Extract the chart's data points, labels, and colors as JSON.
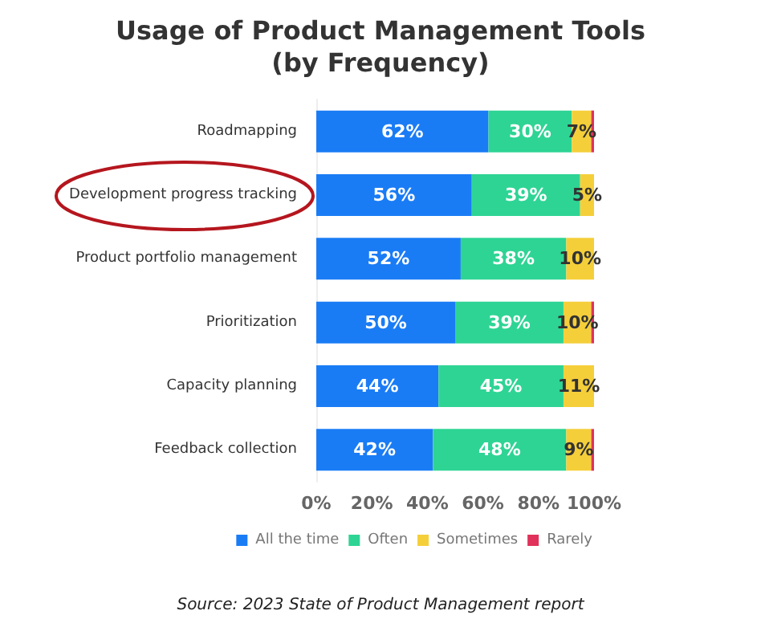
{
  "chart_data": {
    "type": "bar",
    "title": "Usage of Product Management Tools\n(by Frequency)",
    "orientation": "horizontal",
    "stacked": true,
    "categories": [
      "Roadmapping",
      "Development progress tracking",
      "Product portfolio management",
      "Prioritization",
      "Capacity planning",
      "Feedback collection"
    ],
    "series": [
      {
        "name": "All the time",
        "color": "#1a7cf5",
        "values": [
          62,
          56,
          52,
          50,
          44,
          42
        ],
        "value_labels": [
          "62%",
          "56%",
          "52%",
          "50%",
          "44%",
          "42%"
        ]
      },
      {
        "name": "Often",
        "color": "#2ed494",
        "values": [
          30,
          39,
          38,
          39,
          45,
          48
        ],
        "value_labels": [
          "30%",
          "39%",
          "38%",
          "39%",
          "45%",
          "48%"
        ]
      },
      {
        "name": "Sometimes",
        "color": "#f5cf3a",
        "values": [
          7,
          5,
          10,
          10,
          11,
          9
        ],
        "value_labels": [
          "7%",
          "5%",
          "10%",
          "10%",
          "11%",
          "9%"
        ]
      },
      {
        "name": "Rarely",
        "color": "#e0325a",
        "values": [
          1,
          0,
          0,
          1,
          0,
          1
        ],
        "value_labels": [
          null,
          null,
          null,
          null,
          null,
          null
        ]
      }
    ],
    "xlim": [
      0,
      100
    ],
    "xticks": [
      {
        "value": 0,
        "label": "0%"
      },
      {
        "value": 20,
        "label": "20%"
      },
      {
        "value": 40,
        "label": "40%"
      },
      {
        "value": 60,
        "label": "60%"
      },
      {
        "value": 80,
        "label": "80%"
      },
      {
        "value": 100,
        "label": "100%"
      }
    ],
    "grid": false,
    "legend": "bottom",
    "annotations": [
      "Source: 2023 State of Product Management report"
    ]
  }
}
